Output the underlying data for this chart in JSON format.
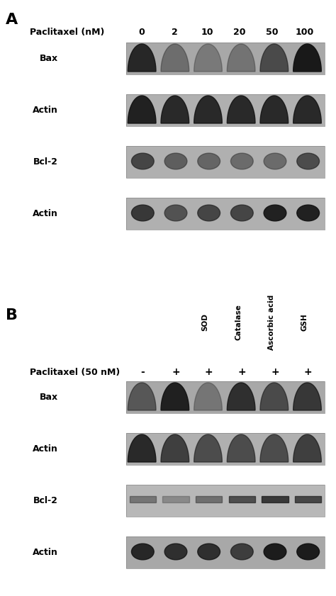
{
  "panel_A_label": "A",
  "panel_B_label": "B",
  "panel_A_header_label": "Paclitaxel (nM)",
  "panel_A_concentrations": [
    "0",
    "2",
    "10",
    "20",
    "50",
    "100"
  ],
  "panel_A_bands": [
    "Bax",
    "Actin",
    "Bcl-2",
    "Actin"
  ],
  "panel_B_header_label": "Paclitaxel (50 nM)",
  "panel_B_treatments": [
    "-",
    "+",
    "+",
    "+",
    "+",
    "+"
  ],
  "panel_B_treatment_labels": [
    "SOD",
    "Catalase",
    "Ascorbic acid",
    "GSH"
  ],
  "panel_B_bands": [
    "Bax",
    "Actin",
    "Bcl-2",
    "Actin"
  ],
  "bg_color": "#ffffff",
  "blot_bg": "#c8c8c8",
  "band_dark": "#1a1a1a",
  "band_mid": "#555555",
  "band_light": "#888888"
}
